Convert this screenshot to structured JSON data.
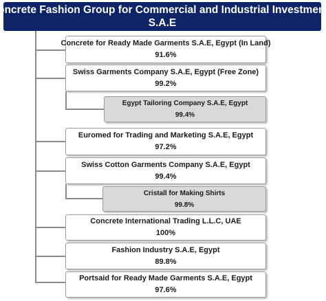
{
  "header": {
    "line1": "Concrete Fashion Group for Commercial and Industrial Investments",
    "line2": "S.A.E"
  },
  "companies": [
    {
      "name": "Concrete for Ready Made Garments S.A.E, Egypt (In Land)",
      "pct": "91.6%"
    },
    {
      "name": "Swiss Garments Company S.A.E, Egypt (Free Zone)",
      "pct": "99.2%"
    },
    {
      "name": "Egypt Tailoring Company S.A.E, Egypt",
      "pct": "99.4%"
    },
    {
      "name": "Euromed for Trading and Marketing S.A.E, Egypt",
      "pct": "97.2%"
    },
    {
      "name": "Swiss Cotton Garments Company S.A.E, Egypt",
      "pct": "99.4%"
    },
    {
      "name": "Cristall for Making Shirts",
      "pct": "99.8%"
    },
    {
      "name": "Concrete International Trading L.L.C, UAE",
      "pct": "100%"
    },
    {
      "name": "Fashion Industry S.A.E, Egypt",
      "pct": "89.8%"
    },
    {
      "name": "Portsaid for Ready Made Garments S.A.E, Egypt",
      "pct": "97.6%"
    }
  ],
  "colors": {
    "header_bg": "#0d2566",
    "header_text": "#ffffff",
    "box_bg": "#ffffff",
    "subsidiary_box_bg": "#d9d9d9",
    "connector": "#8a8a8a"
  }
}
